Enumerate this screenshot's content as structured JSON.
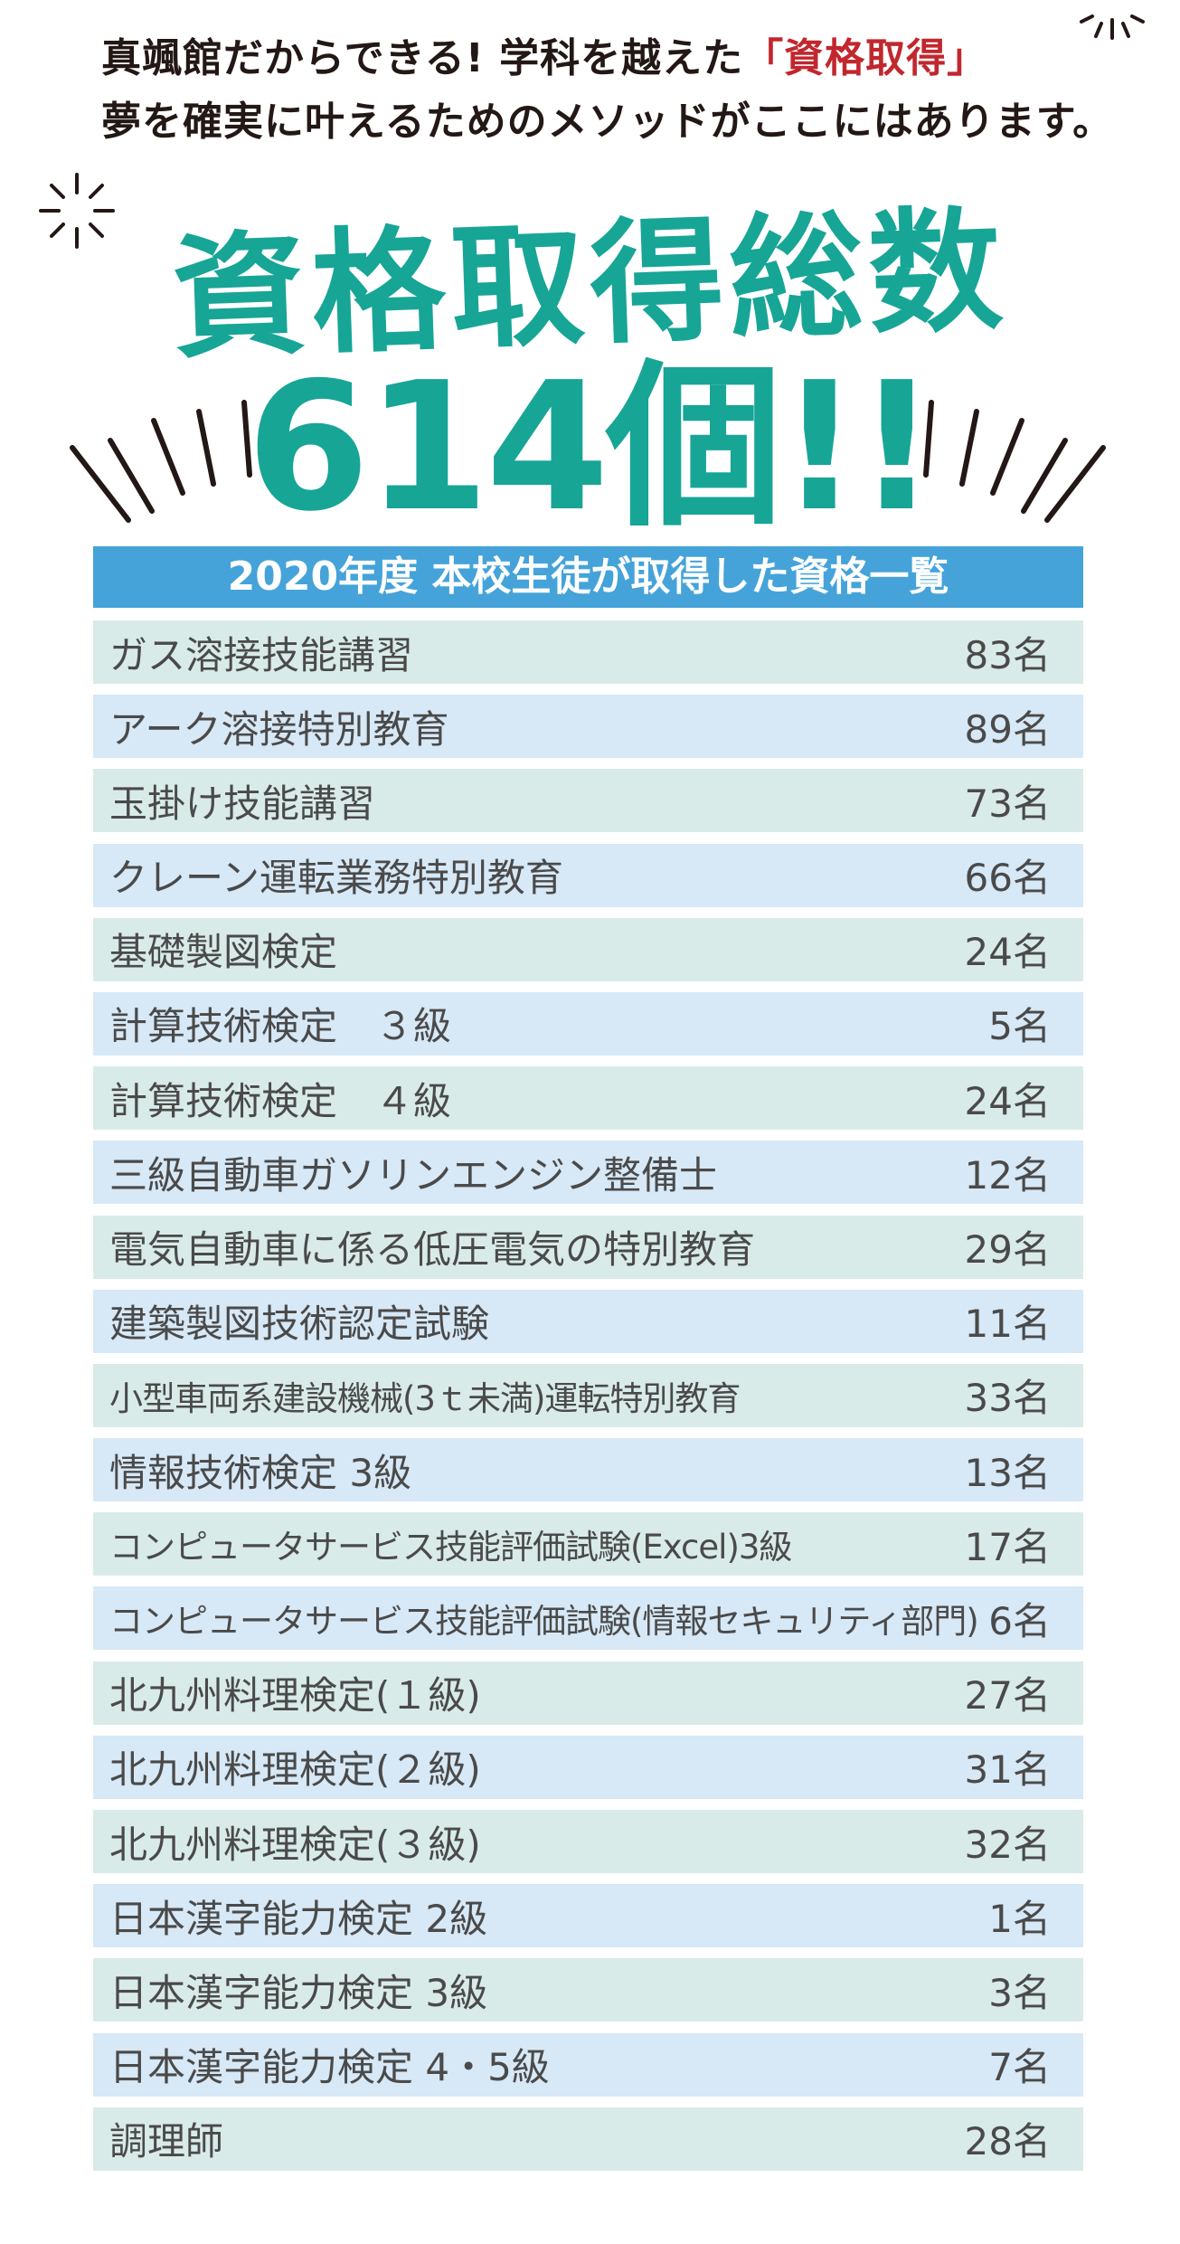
{
  "intro": {
    "line1_prefix": "真颯館だからできる! 学科を越えた",
    "line1_accent": "「資格取得」",
    "line2": "夢を確実に叶えるためのメソッドがここにはあります。"
  },
  "headline": "資格取得総数",
  "total": "614個!!",
  "list_title": "2020年度 本校生徒が取得した資格一覧",
  "colors": {
    "teal": "#17a596",
    "title_bar": "#45a3d9",
    "accent": "#c1272d",
    "row_teal": "#d9ebe8",
    "row_blue": "#d7e8f6"
  },
  "rows": [
    {
      "name": "ガス溶接技能講習",
      "count": "83名"
    },
    {
      "name": "アーク溶接特別教育",
      "count": "89名"
    },
    {
      "name": "玉掛け技能講習",
      "count": "73名"
    },
    {
      "name": "クレーン運転業務特別教育",
      "count": "66名"
    },
    {
      "name": "基礎製図検定",
      "count": "24名"
    },
    {
      "name": "計算技術検定　３級",
      "count": "5名"
    },
    {
      "name": "計算技術検定　４級",
      "count": "24名"
    },
    {
      "name": "三級自動車ガソリンエンジン整備士",
      "count": "12名"
    },
    {
      "name": "電気自動車に係る低圧電気の特別教育",
      "count": "29名"
    },
    {
      "name": "建築製図技術認定試験",
      "count": "11名"
    },
    {
      "name": "小型車両系建設機械(3ｔ未満)運転特別教育",
      "count": "33名"
    },
    {
      "name": "情報技術検定 3級",
      "count": "13名"
    },
    {
      "name": "コンピュータサービス技能評価試験(Excel)3級",
      "count": "17名"
    },
    {
      "name": "コンピュータサービス技能評価試験(情報セキュリティ部門)",
      "count": "6名"
    },
    {
      "name": "北九州料理検定(１級)",
      "count": "27名"
    },
    {
      "name": "北九州料理検定(２級)",
      "count": "31名"
    },
    {
      "name": "北九州料理検定(３級)",
      "count": "32名"
    },
    {
      "name": "日本漢字能力検定 2級",
      "count": "1名"
    },
    {
      "name": "日本漢字能力検定 3級",
      "count": "3名"
    },
    {
      "name": "日本漢字能力検定 4・5級",
      "count": "7名"
    },
    {
      "name": "調理師",
      "count": "28名"
    }
  ]
}
